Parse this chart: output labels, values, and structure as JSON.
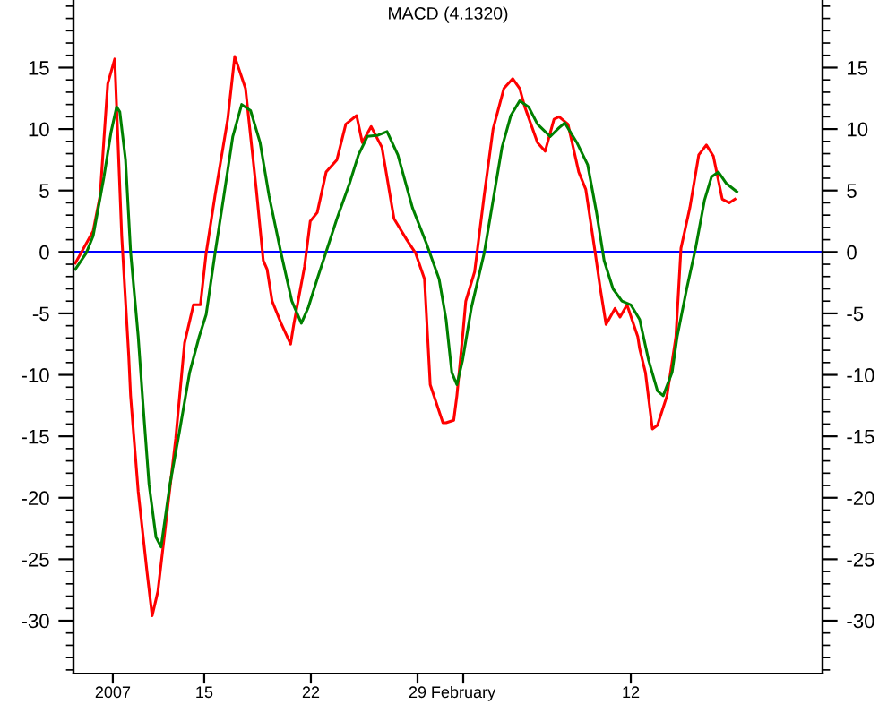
{
  "chart_data": {
    "type": "line",
    "title": "MACD (4.1320)",
    "series": [
      {
        "color": "#ff0000",
        "x": [
          "2007-01-06T13:00",
          "2007-01-07T17:00",
          "2007-01-08T04:00",
          "2007-01-08T10:00",
          "2007-01-08T16:00",
          "2007-01-09T03:00",
          "2007-01-09T14:00",
          "2007-01-10T01:00",
          "2007-01-10T04:00",
          "2007-01-10T16:00",
          "2007-01-11T06:00",
          "2007-01-11T14:00",
          "2007-01-11T23:00",
          "2007-01-12T13:00",
          "2007-01-13T03:00",
          "2007-01-13T17:00",
          "2007-01-14T07:00",
          "2007-01-14T18:00",
          "2007-01-15T03:00",
          "2007-01-15T17:00",
          "2007-01-16T13:00",
          "2007-01-17T00:00",
          "2007-01-17T17:00",
          "2007-01-18T10:00",
          "2007-01-18T21:00",
          "2007-01-19T03:00",
          "2007-01-19T11:00",
          "2007-01-20T01:00",
          "2007-01-20T16:00",
          "2007-01-20T21:00",
          "2007-01-21T14:00",
          "2007-01-21T23:00",
          "2007-01-22T10:00",
          "2007-01-23T00:00",
          "2007-01-23T17:00",
          "2007-01-24T07:00",
          "2007-01-25T00:00",
          "2007-01-25T09:00",
          "2007-01-25T23:00",
          "2007-01-26T16:00",
          "2007-01-27T11:00",
          "2007-01-28T07:00",
          "2007-01-28T21:00",
          "2007-01-29T11:00",
          "2007-01-29T20:00",
          "2007-01-30T16:00",
          "2007-01-30T21:00",
          "2007-01-31T09:00",
          "2007-01-31T14:00",
          "2007-01-31T23:00",
          "2007-02-01T04:00",
          "2007-02-01T18:00",
          "2007-02-02T09:00",
          "2007-02-02T23:00",
          "2007-02-03T16:00",
          "2007-02-04T06:00",
          "2007-02-04T17:00",
          "2007-02-05T01:00",
          "2007-02-05T21:00",
          "2007-02-06T09:00",
          "2007-02-06T23:00",
          "2007-02-07T07:00",
          "2007-02-07T21:00",
          "2007-02-08T14:00",
          "2007-02-09T01:00",
          "2007-02-09T16:00",
          "2007-02-10T00:00",
          "2007-02-10T09:00",
          "2007-02-10T23:00",
          "2007-02-11T07:00",
          "2007-02-11T18:00",
          "2007-02-12T11:00",
          "2007-02-12T14:00",
          "2007-02-12T23:00",
          "2007-02-13T10:00",
          "2007-02-13T18:00",
          "2007-02-14T09:00",
          "2007-02-14T23:00",
          "2007-02-15T07:00",
          "2007-02-15T21:00",
          "2007-02-16T11:00",
          "2007-02-16T23:00",
          "2007-02-17T10:00",
          "2007-02-18T00:00",
          "2007-02-18T11:00",
          "2007-02-18T20:00"
        ],
        "values": [
          -0.9,
          1.7,
          4.6,
          9.2,
          13.7,
          15.7,
          1.3,
          -8.4,
          -11.7,
          -19.5,
          -26.1,
          -29.6,
          -27.6,
          -21.4,
          -15.2,
          -7.4,
          -4.3,
          -4.3,
          -0.1,
          4.6,
          10.8,
          15.9,
          13.3,
          5.1,
          -0.7,
          -1.4,
          -4.0,
          -5.8,
          -7.5,
          -5.9,
          -1.2,
          2.5,
          3.2,
          6.5,
          7.5,
          10.4,
          11.1,
          8.9,
          10.2,
          8.5,
          2.7,
          1.0,
          -0.1,
          -2.2,
          -10.8,
          -13.9,
          -13.9,
          -13.7,
          -11.7,
          -6.9,
          -4.0,
          -1.6,
          4.6,
          10.0,
          13.3,
          14.1,
          13.3,
          11.8,
          8.9,
          8.2,
          10.8,
          11.0,
          10.4,
          6.5,
          5.1,
          -0.1,
          -3.0,
          -5.9,
          -4.6,
          -5.3,
          -4.3,
          -6.9,
          -7.9,
          -9.8,
          -14.4,
          -14.1,
          -11.7,
          -6.9,
          0.3,
          3.6,
          7.9,
          8.7,
          7.8,
          4.3,
          4.0,
          4.3
        ]
      },
      {
        "color": "#008000",
        "x": [
          "2007-01-06T13:00",
          "2007-01-07T06:00",
          "2007-01-07T17:00",
          "2007-01-08T10:00",
          "2007-01-08T21:00",
          "2007-01-09T06:00",
          "2007-01-09T11:00",
          "2007-01-09T20:00",
          "2007-01-10T04:00",
          "2007-01-10T16:00",
          "2007-01-11T00:00",
          "2007-01-11T09:00",
          "2007-01-11T20:00",
          "2007-01-12T04:00",
          "2007-01-12T18:00",
          "2007-01-13T09:00",
          "2007-01-14T01:00",
          "2007-01-14T16:00",
          "2007-01-15T03:00",
          "2007-01-15T17:00",
          "2007-01-16T07:00",
          "2007-01-16T21:00",
          "2007-01-17T11:00",
          "2007-01-18T01:00",
          "2007-01-18T16:00",
          "2007-01-19T06:00",
          "2007-01-20T01:00",
          "2007-01-20T18:00",
          "2007-01-21T09:00",
          "2007-01-21T20:00",
          "2007-01-22T10:00",
          "2007-01-23T00:00",
          "2007-01-23T17:00",
          "2007-01-24T13:00",
          "2007-01-25T03:00",
          "2007-01-25T17:00",
          "2007-01-26T10:00",
          "2007-01-27T00:00",
          "2007-01-27T17:00",
          "2007-01-28T16:00",
          "2007-01-29T14:00",
          "2007-01-30T10:00",
          "2007-01-30T21:00",
          "2007-01-31T06:00",
          "2007-01-31T14:00",
          "2007-01-31T23:00",
          "2007-02-01T13:00",
          "2007-02-02T09:00",
          "2007-02-02T23:00",
          "2007-02-03T13:00",
          "2007-02-04T03:00",
          "2007-02-04T17:00",
          "2007-02-05T07:00",
          "2007-02-05T21:00",
          "2007-02-06T17:00",
          "2007-02-07T07:00",
          "2007-02-07T16:00",
          "2007-02-08T11:00",
          "2007-02-09T04:00",
          "2007-02-09T18:00",
          "2007-02-10T06:00",
          "2007-02-10T20:00",
          "2007-02-11T10:00",
          "2007-02-12T00:00",
          "2007-02-12T14:00",
          "2007-02-13T04:00",
          "2007-02-13T18:00",
          "2007-02-14T03:00",
          "2007-02-14T17:00",
          "2007-02-15T01:00",
          "2007-02-15T16:00",
          "2007-02-16T06:00",
          "2007-02-16T20:00",
          "2007-02-17T07:00",
          "2007-02-17T18:00",
          "2007-02-18T06:00",
          "2007-02-18T23:00"
        ],
        "values": [
          -1.4,
          -0.1,
          1.3,
          6.1,
          9.7,
          11.8,
          11.4,
          7.5,
          0.0,
          -6.9,
          -12.7,
          -18.9,
          -23.2,
          -24.0,
          -18.9,
          -14.6,
          -9.8,
          -6.9,
          -5.1,
          -0.1,
          4.6,
          9.4,
          12.0,
          11.5,
          8.9,
          4.6,
          -0.1,
          -4.0,
          -5.8,
          -4.5,
          -2.2,
          0.0,
          2.7,
          5.6,
          7.9,
          9.4,
          9.5,
          9.8,
          7.9,
          3.6,
          0.7,
          -2.2,
          -5.5,
          -9.8,
          -10.8,
          -8.8,
          -4.5,
          -0.1,
          4.2,
          8.5,
          11.1,
          12.3,
          11.8,
          10.4,
          9.4,
          10.1,
          10.5,
          8.9,
          7.1,
          3.2,
          -0.7,
          -3.0,
          -4.0,
          -4.3,
          -5.5,
          -8.8,
          -11.3,
          -11.7,
          -9.8,
          -6.9,
          -3.0,
          0.3,
          4.2,
          6.1,
          6.5,
          5.6,
          4.9
        ]
      }
    ],
    "xlim": [
      "2007-01-06T10:00",
      "2007-02-24T14:00"
    ],
    "xticks": [
      {
        "value": "2007-01-09",
        "label": "2007"
      },
      {
        "value": "2007-01-15",
        "label": "15"
      },
      {
        "value": "2007-01-22",
        "label": "22"
      },
      {
        "value": "2007-01-29",
        "label": "29"
      },
      {
        "value": "2007-02-01",
        "label": "February"
      },
      {
        "value": "2007-02-12",
        "label": "12"
      }
    ],
    "ylim": [
      -34.3,
      20.5
    ],
    "yticks": [
      -30,
      -25,
      -20,
      -15,
      -10,
      -5,
      0,
      5,
      10,
      15
    ],
    "y2lim": [
      -34.3,
      20.5
    ],
    "y2ticks": [
      -30,
      -25,
      -20,
      -15,
      -10,
      -5,
      0,
      5,
      10,
      15
    ],
    "ref_lines": [
      {
        "axis": "y",
        "value": 0,
        "color": "#0000ff"
      }
    ],
    "grid": false,
    "legend": false
  }
}
